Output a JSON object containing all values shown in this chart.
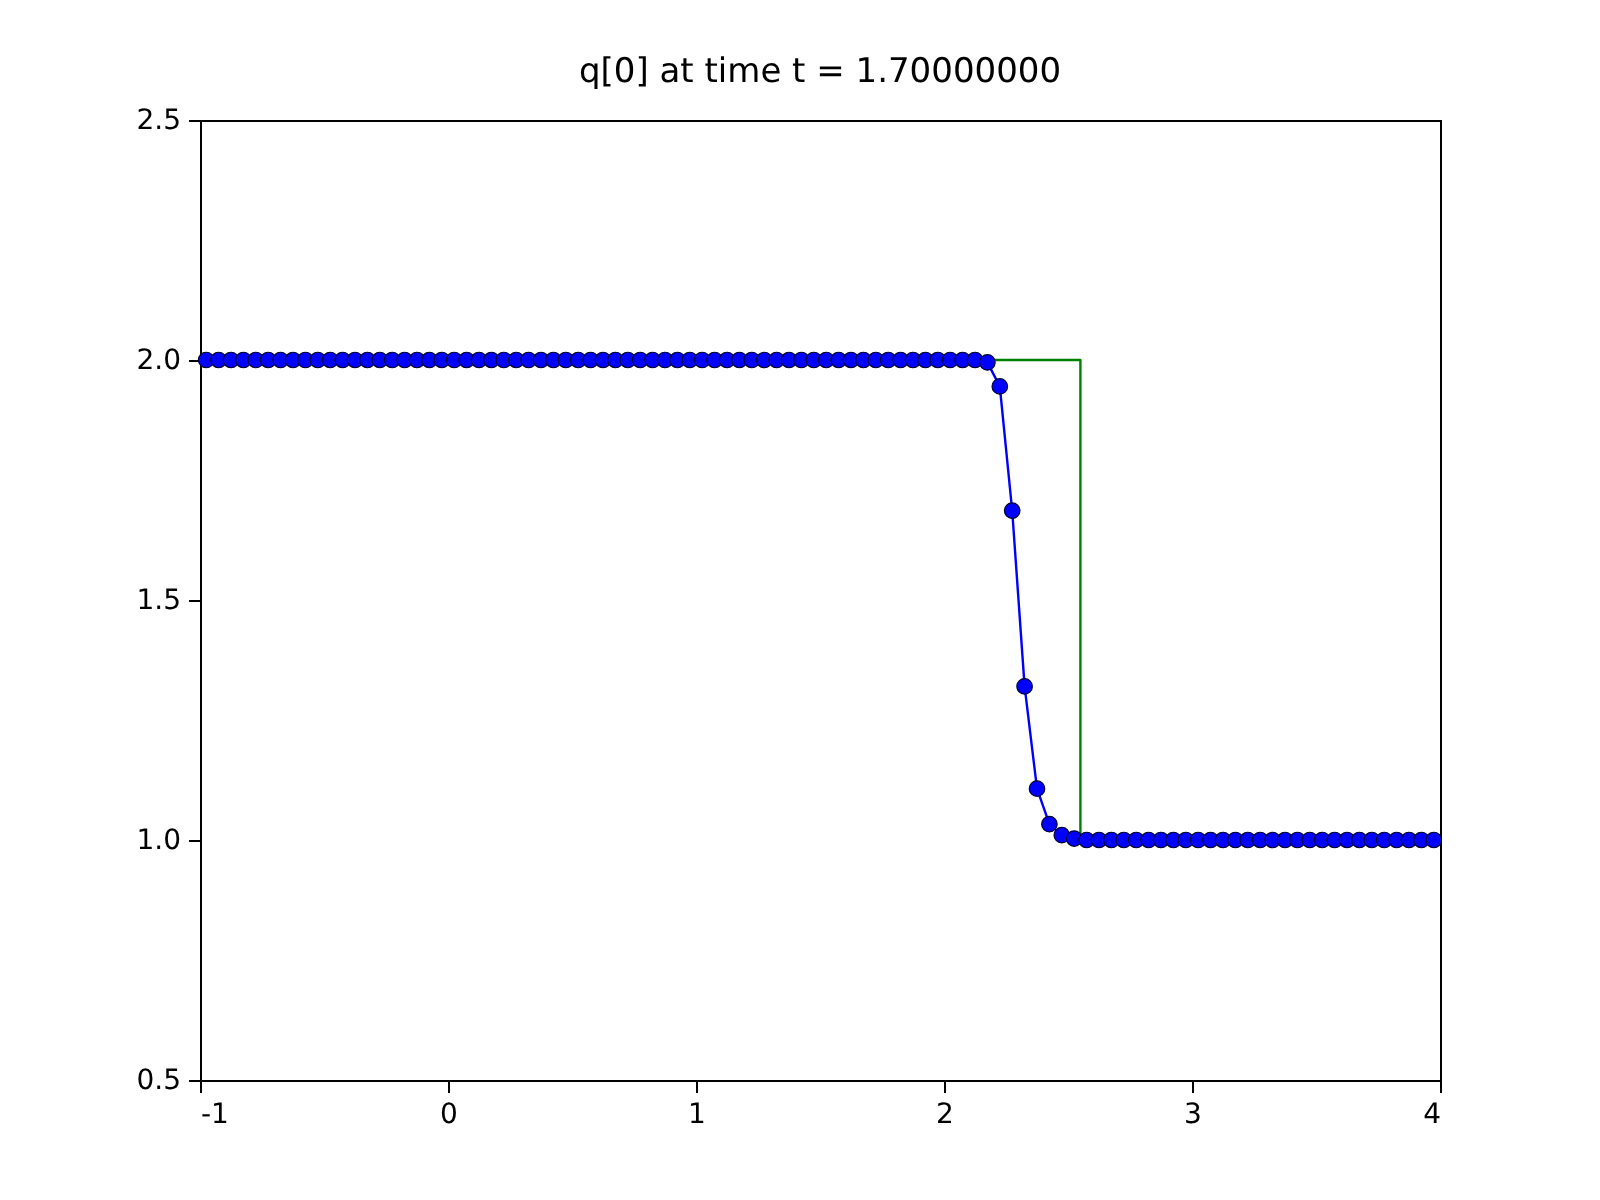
{
  "chart_data": {
    "type": "line",
    "title": "q[0] at time t =     1.70000000",
    "xlim": [
      -1,
      4
    ],
    "xticks": [
      -1,
      0,
      1,
      2,
      3,
      4
    ],
    "ylim": [
      0.5,
      2.5
    ],
    "yticks": [
      {
        "value": 0.5,
        "label": "0.5"
      },
      {
        "value": 1,
        "label": "1.0"
      },
      {
        "value": 1.5,
        "label": "1.5"
      },
      {
        "value": 2,
        "label": "2.0"
      },
      {
        "value": 2.5,
        "label": "2.5"
      }
    ],
    "grid": false,
    "series": [
      {
        "color": "#008000",
        "marker": "none",
        "x": [
          -1,
          2.55,
          2.55,
          4
        ],
        "values": [
          2,
          2,
          1,
          1
        ]
      },
      {
        "color": "#0000ff",
        "marker": "circle",
        "x": [
          -0.975,
          -0.925,
          -0.875,
          -0.825,
          -0.775,
          -0.725,
          -0.675,
          -0.625,
          -0.575,
          -0.525,
          -0.475,
          -0.425,
          -0.375,
          -0.325,
          -0.275,
          -0.225,
          -0.175,
          -0.125,
          -0.075,
          -0.025,
          0.025,
          0.075,
          0.125,
          0.175,
          0.225,
          0.275,
          0.325,
          0.375,
          0.425,
          0.475,
          0.525,
          0.575,
          0.625,
          0.675,
          0.725,
          0.775,
          0.825,
          0.875,
          0.925,
          0.975,
          1.025,
          1.075,
          1.125,
          1.175,
          1.225,
          1.275,
          1.325,
          1.375,
          1.425,
          1.475,
          1.525,
          1.575,
          1.625,
          1.675,
          1.725,
          1.775,
          1.825,
          1.875,
          1.925,
          1.975,
          2.025,
          2.075,
          2.125,
          2.175,
          2.225,
          2.275,
          2.325,
          2.375,
          2.425,
          2.475,
          2.525,
          2.575,
          2.625,
          2.675,
          2.725,
          2.775,
          2.825,
          2.875,
          2.925,
          2.975,
          3.025,
          3.075,
          3.125,
          3.175,
          3.225,
          3.275,
          3.325,
          3.375,
          3.425,
          3.475,
          3.525,
          3.575,
          3.625,
          3.675,
          3.725,
          3.775,
          3.825,
          3.875,
          3.925,
          3.975
        ],
        "values": [
          2,
          2,
          2,
          2,
          2,
          2,
          2,
          2,
          2,
          2,
          2,
          2,
          2,
          2,
          2,
          2,
          2,
          2,
          2,
          2,
          2,
          2,
          2,
          2,
          2,
          2,
          2,
          2,
          2,
          2,
          2,
          2,
          2,
          2,
          2,
          2,
          2,
          2,
          2,
          2,
          2,
          2,
          2,
          2,
          2,
          2,
          2,
          2,
          2,
          2,
          2,
          2,
          2,
          2,
          2,
          2,
          2,
          2,
          2,
          2,
          2,
          2,
          2,
          1.995,
          1.945,
          1.686,
          1.32,
          1.107,
          1.033,
          1.01,
          1.003,
          1,
          1,
          1,
          1,
          1,
          1,
          1,
          1,
          1,
          1,
          1,
          1,
          1,
          1,
          1,
          1,
          1,
          1,
          1,
          1,
          1,
          1,
          1,
          1,
          1,
          1,
          1,
          1,
          1
        ]
      }
    ]
  }
}
